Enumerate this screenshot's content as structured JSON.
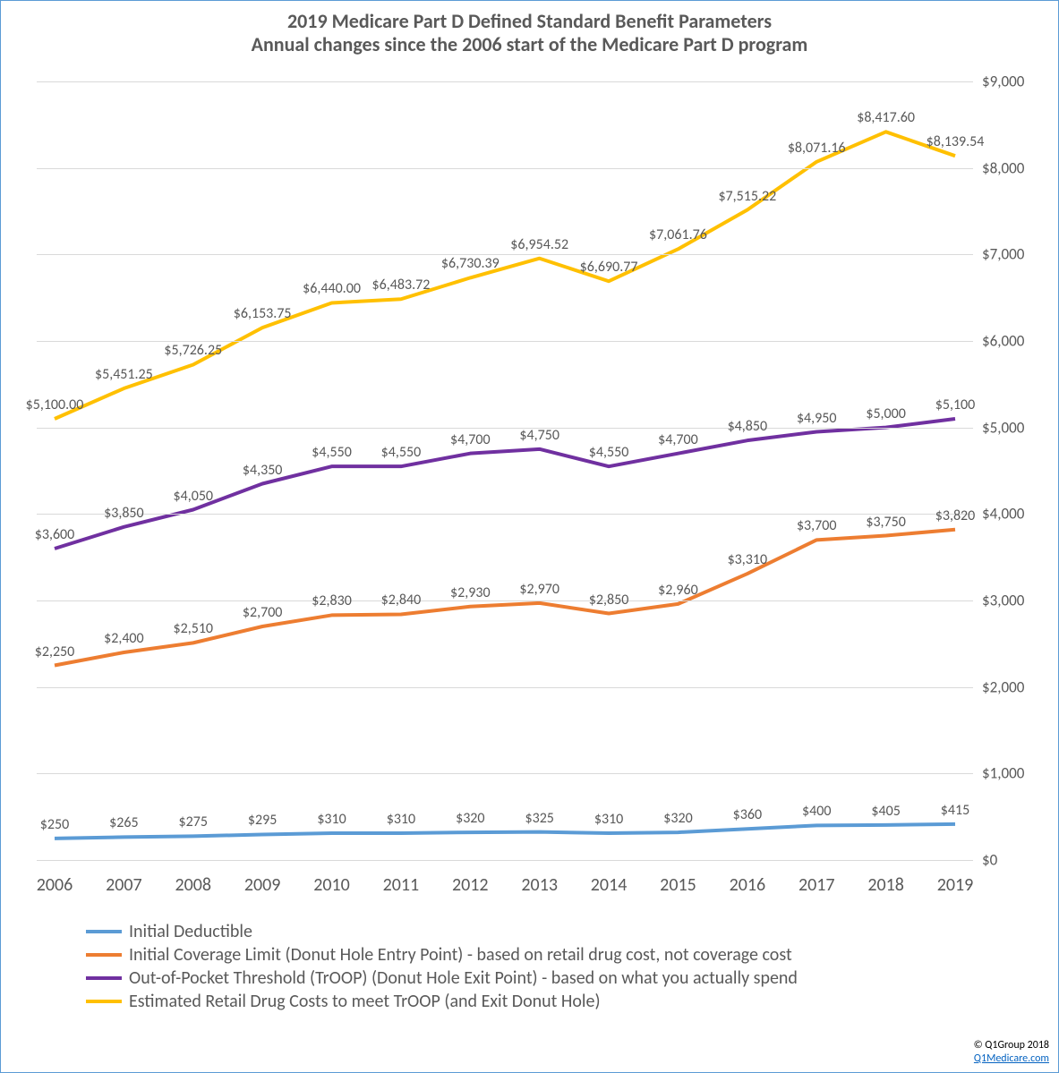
{
  "title": {
    "line1": "2019 Medicare Part D Defined Standard Benefit Parameters",
    "line2": "Annual changes since the 2006 start of the Medicare Part D program",
    "fontsize": 22,
    "color": "#595959"
  },
  "chart": {
    "type": "line",
    "background_color": "#ffffff",
    "border_color": "#5b9bd5",
    "grid_color": "#d9d9d9",
    "axis_text_color": "#595959",
    "line_width": 4,
    "x_categories": [
      "2006",
      "2007",
      "2008",
      "2009",
      "2010",
      "2011",
      "2012",
      "2013",
      "2014",
      "2015",
      "2016",
      "2017",
      "2018",
      "2019"
    ],
    "ylim": [
      0,
      9000
    ],
    "ytick_step": 1000,
    "ytick_labels": [
      "$0",
      "$1,000",
      "$2,000",
      "$3,000",
      "$4,000",
      "$5,000",
      "$6,000",
      "$7,000",
      "$8,000",
      "$9,000"
    ],
    "x_label_fontsize": 20,
    "y_label_fontsize": 17,
    "data_label_fontsize": 16
  },
  "series": [
    {
      "id": "deductible",
      "name": "Initial Deductible",
      "color": "#5b9bd5",
      "values": [
        250,
        265,
        275,
        295,
        310,
        310,
        320,
        325,
        310,
        320,
        360,
        400,
        405,
        415
      ],
      "labels": [
        "$250",
        "$265",
        "$275",
        "$295",
        "$310",
        "$310",
        "$320",
        "$325",
        "$310",
        "$320",
        "$360",
        "$400",
        "$405",
        "$415"
      ]
    },
    {
      "id": "icl",
      "name": "Initial Coverage Limit (Donut Hole Entry Point) - based on retail drug cost, not coverage cost",
      "color": "#ed7d31",
      "values": [
        2250,
        2400,
        2510,
        2700,
        2830,
        2840,
        2930,
        2970,
        2850,
        2960,
        3310,
        3700,
        3750,
        3820
      ],
      "labels": [
        "$2,250",
        "$2,400",
        "$2,510",
        "$2,700",
        "$2,830",
        "$2,840",
        "$2,930",
        "$2,970",
        "$2,850",
        "$2,960",
        "$3,310",
        "$3,700",
        "$3,750",
        "$3,820"
      ]
    },
    {
      "id": "troop",
      "name": "Out-of-Pocket Threshold (TrOOP) (Donut Hole Exit Point) - based on what you actually spend",
      "color": "#7030a0",
      "values": [
        3600,
        3850,
        4050,
        4350,
        4550,
        4550,
        4700,
        4750,
        4550,
        4700,
        4850,
        4950,
        5000,
        5100
      ],
      "labels": [
        "$3,600",
        "$3,850",
        "$4,050",
        "$4,350",
        "$4,550",
        "$4,550",
        "$4,700",
        "$4,750",
        "$4,550",
        "$4,700",
        "$4,850",
        "$4,950",
        "$5,000",
        "$5,100"
      ]
    },
    {
      "id": "retail",
      "name": "Estimated Retail Drug Costs to meet TrOOP (and Exit Donut Hole)",
      "color": "#ffc000",
      "values": [
        5100.0,
        5451.25,
        5726.25,
        6153.75,
        6440.0,
        6483.72,
        6730.39,
        6954.52,
        6690.77,
        7061.76,
        7515.22,
        8071.16,
        8417.6,
        8139.54
      ],
      "labels": [
        "$5,100.00",
        "$5,451.25",
        "$5,726.25",
        "$6,153.75",
        "$6,440.00",
        "$6,483.72",
        "$6,730.39",
        "$6,954.52",
        "$6,690.77",
        "$7,061.76",
        "$7,515.22",
        "$8,071.16",
        "$8,417.60",
        "$8,139.54"
      ]
    }
  ],
  "credit": {
    "line1": "© Q1Group 2018",
    "line2": "Q1Medicare.com",
    "link_color": "#0563c1"
  }
}
